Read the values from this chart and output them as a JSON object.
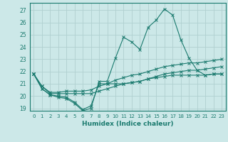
{
  "title": "",
  "xlabel": "Humidex (Indice chaleur)",
  "bg_color": "#cce8e8",
  "grid_color": "#b0d0d0",
  "line_color": "#1a7a6e",
  "xlim": [
    -0.5,
    23.5
  ],
  "ylim": [
    18.8,
    27.6
  ],
  "yticks": [
    19,
    20,
    21,
    22,
    23,
    24,
    25,
    26,
    27
  ],
  "xticks": [
    0,
    1,
    2,
    3,
    4,
    5,
    6,
    7,
    8,
    9,
    10,
    11,
    12,
    13,
    14,
    15,
    16,
    17,
    18,
    19,
    20,
    21,
    22,
    23
  ],
  "line1_x": [
    0,
    1,
    2,
    3,
    4,
    5,
    6,
    7,
    8,
    9,
    10,
    11,
    12,
    13,
    14,
    15,
    16,
    17,
    18,
    19,
    20,
    21,
    22,
    23
  ],
  "line1_y": [
    21.8,
    20.6,
    20.1,
    19.9,
    19.8,
    19.4,
    18.8,
    19.0,
    21.2,
    21.2,
    23.1,
    24.8,
    24.4,
    23.8,
    25.6,
    26.2,
    27.1,
    26.6,
    24.6,
    23.1,
    22.1,
    21.7,
    21.8,
    21.8
  ],
  "line2_x": [
    0,
    1,
    2,
    3,
    4,
    5,
    6,
    7,
    8,
    9,
    10,
    11,
    12,
    13,
    14,
    15,
    16,
    17,
    18,
    19,
    20,
    21,
    22,
    23
  ],
  "line2_y": [
    21.8,
    20.6,
    20.1,
    20.0,
    19.9,
    19.5,
    18.9,
    19.2,
    21.0,
    21.0,
    21.0,
    21.0,
    21.1,
    21.2,
    21.4,
    21.5,
    21.6,
    21.7,
    21.7,
    21.7,
    21.7,
    21.7,
    21.8,
    21.8
  ],
  "line3_x": [
    0,
    1,
    2,
    3,
    4,
    5,
    6,
    7,
    8,
    9,
    10,
    11,
    12,
    13,
    14,
    15,
    16,
    17,
    18,
    19,
    20,
    21,
    22,
    23
  ],
  "line3_y": [
    21.8,
    20.8,
    20.2,
    20.2,
    20.2,
    20.2,
    20.2,
    20.2,
    20.4,
    20.6,
    20.8,
    21.0,
    21.1,
    21.2,
    21.4,
    21.6,
    21.8,
    21.9,
    22.0,
    22.1,
    22.1,
    22.2,
    22.3,
    22.4
  ],
  "line4_x": [
    0,
    1,
    2,
    3,
    4,
    5,
    6,
    7,
    8,
    9,
    10,
    11,
    12,
    13,
    14,
    15,
    16,
    17,
    18,
    19,
    20,
    21,
    22,
    23
  ],
  "line4_y": [
    21.8,
    20.8,
    20.3,
    20.3,
    20.4,
    20.4,
    20.4,
    20.5,
    20.8,
    21.0,
    21.3,
    21.5,
    21.7,
    21.8,
    22.0,
    22.2,
    22.4,
    22.5,
    22.6,
    22.7,
    22.7,
    22.8,
    22.9,
    23.0
  ]
}
